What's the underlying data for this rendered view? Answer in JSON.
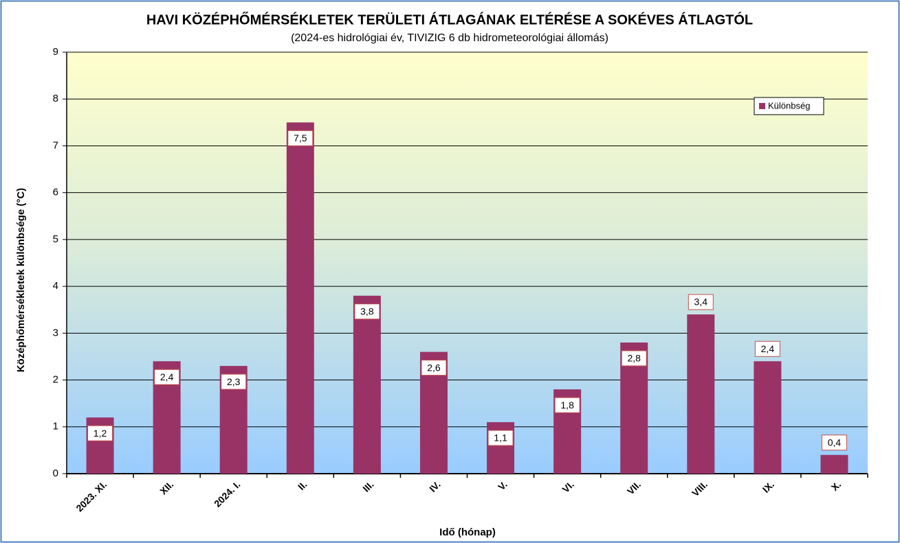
{
  "chart_data": {
    "type": "bar",
    "title": "HAVI KÖZÉPHŐMÉRSÉKLETEK TERÜLETI ÁTLAGÁNAK ELTÉRÉSE A SOKÉVES ÁTLAGTÓL",
    "subtitle": "(2024-es hidrológiai év, TIVIZIG  6 db hidrometeorológiai állomás)",
    "x_label": "Idő (hónap)",
    "y_label": "Középhőmérsékletek különbsége (°C)",
    "categories": [
      "2023. XI.",
      "XII.",
      "2024. I.",
      "II.",
      "III.",
      "IV.",
      "V.",
      "VI.",
      "VII.",
      "VIII.",
      "IX.",
      "X."
    ],
    "series": [
      {
        "name": "Különbség",
        "color": "#993366",
        "values": [
          1.2,
          2.4,
          2.3,
          7.5,
          3.8,
          2.6,
          1.1,
          1.8,
          2.8,
          3.4,
          2.4,
          0.4
        ],
        "value_labels": [
          "1,2",
          "2,4",
          "2,3",
          "7,5",
          "3,8",
          "2,6",
          "1,1",
          "1,8",
          "2,8",
          "3,4",
          "2,4",
          "0,4"
        ]
      }
    ],
    "ylim": [
      0,
      9
    ],
    "yticks": [
      0,
      1,
      2,
      3,
      4,
      5,
      6,
      7,
      8,
      9
    ],
    "grid": true,
    "legend": "top-right"
  }
}
